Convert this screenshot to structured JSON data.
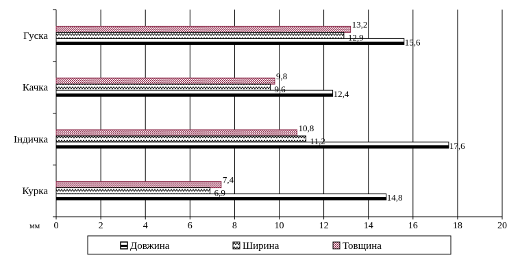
{
  "chart_data": {
    "type": "bar",
    "orientation": "horizontal",
    "categories": [
      "Курка",
      "Індичка",
      "Качка",
      "Гуска"
    ],
    "series": [
      {
        "name": "Довжина",
        "values": [
          14.8,
          17.6,
          12.4,
          15.6
        ],
        "labels": [
          "14,8",
          "17,6",
          "12,4",
          "15,6"
        ]
      },
      {
        "name": "Ширина",
        "values": [
          6.9,
          11.2,
          9.6,
          12.9
        ],
        "labels": [
          "6,9",
          "11,2",
          "9,6",
          "12,9"
        ]
      },
      {
        "name": "Товщина",
        "values": [
          7.4,
          10.8,
          9.8,
          13.2
        ],
        "labels": [
          "7,4",
          "10,8",
          "9,8",
          "13,2"
        ]
      }
    ],
    "xunit": "мм",
    "xlim": [
      0,
      20
    ],
    "xticks": [
      0,
      2,
      4,
      6,
      8,
      10,
      12,
      14,
      16,
      18,
      20
    ],
    "grid": "vertical",
    "legend": "bottom",
    "title": "",
    "xlabel": "",
    "ylabel": ""
  }
}
